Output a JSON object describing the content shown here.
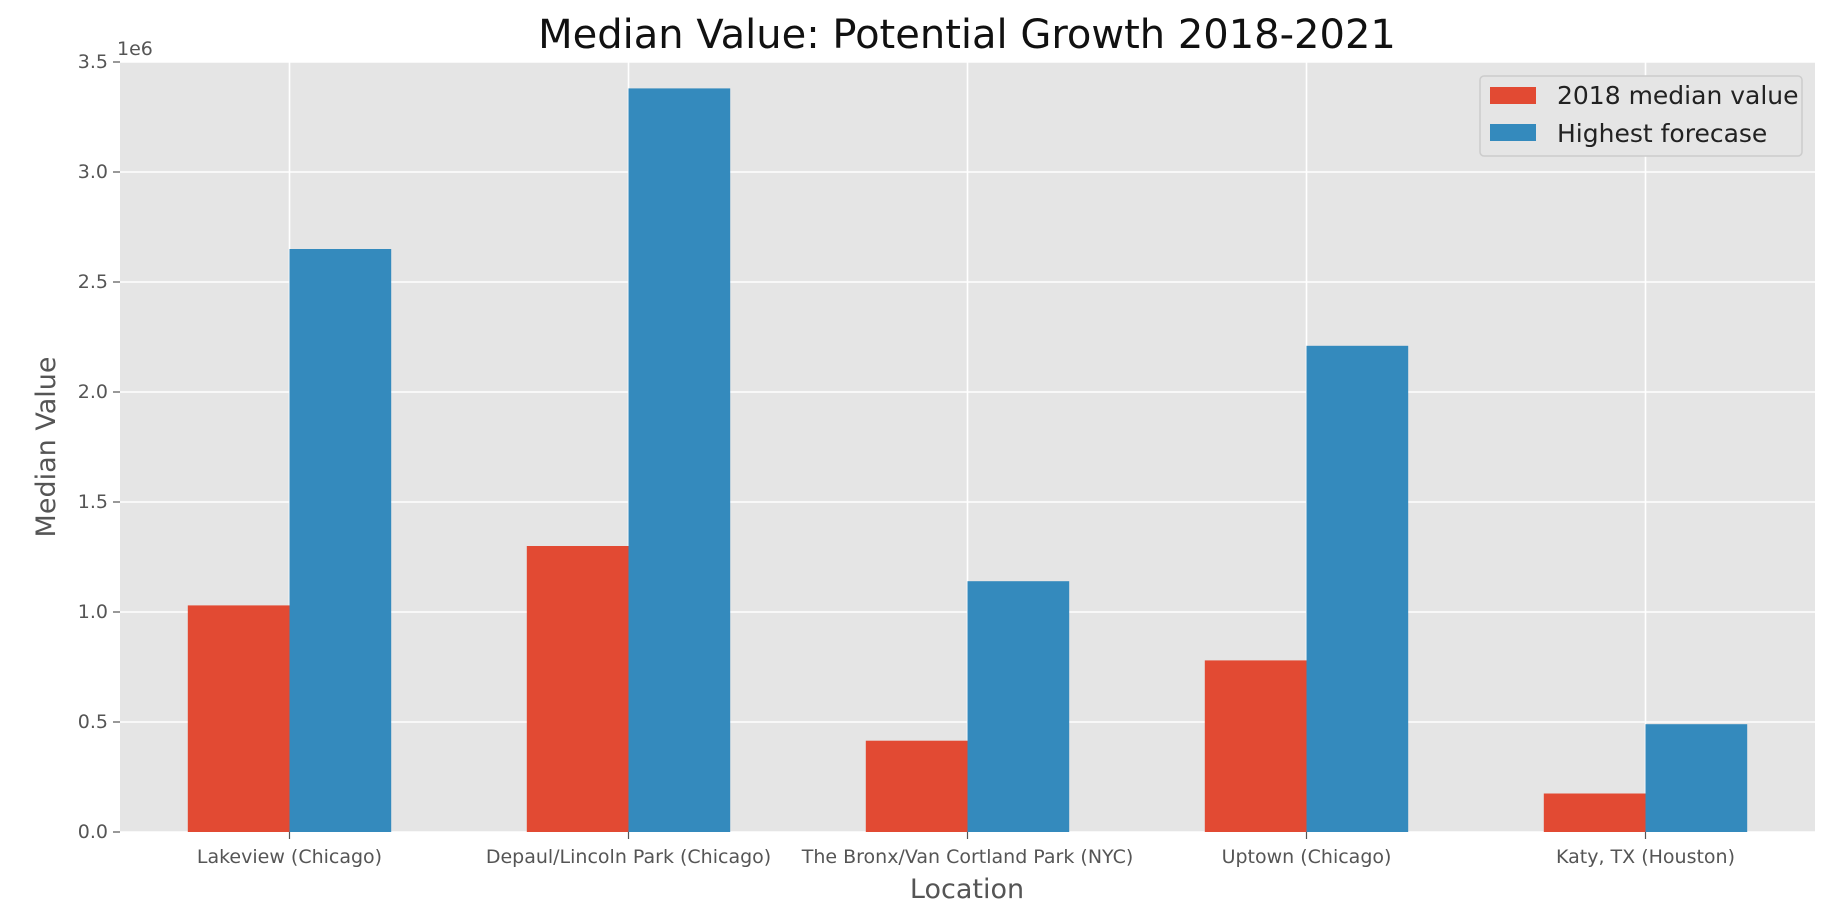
{
  "chart_data": {
    "type": "bar",
    "title": "Median Value: Potential Growth 2018-2021",
    "xlabel": "Location",
    "ylabel": "Median Value",
    "y_offset_label": "1e6",
    "categories": [
      "Lakeview (Chicago)",
      "Depaul/Lincoln Park (Chicago)",
      "The Bronx/Van Cortland Park (NYC)",
      "Uptown (Chicago)",
      "Katy, TX (Houston)"
    ],
    "series": [
      {
        "name": "2018 median value",
        "color": "#E24A33",
        "values": [
          1030000,
          1300000,
          415000,
          780000,
          175000
        ]
      },
      {
        "name": "Highest forecase",
        "color": "#348ABD",
        "values": [
          2650000,
          3380000,
          1140000,
          2210000,
          490000
        ]
      }
    ],
    "ylim": [
      0,
      3500000
    ],
    "yticks": [
      0,
      500000,
      1000000,
      1500000,
      2000000,
      2500000,
      3000000,
      3500000
    ],
    "ytick_labels": [
      "0.0",
      "0.5",
      "1.0",
      "1.5",
      "2.0",
      "2.5",
      "3.0",
      "3.5"
    ],
    "grid": true,
    "legend_position": "top-right",
    "background_color": "#E5E5E5",
    "grid_color": "#FFFFFF"
  }
}
